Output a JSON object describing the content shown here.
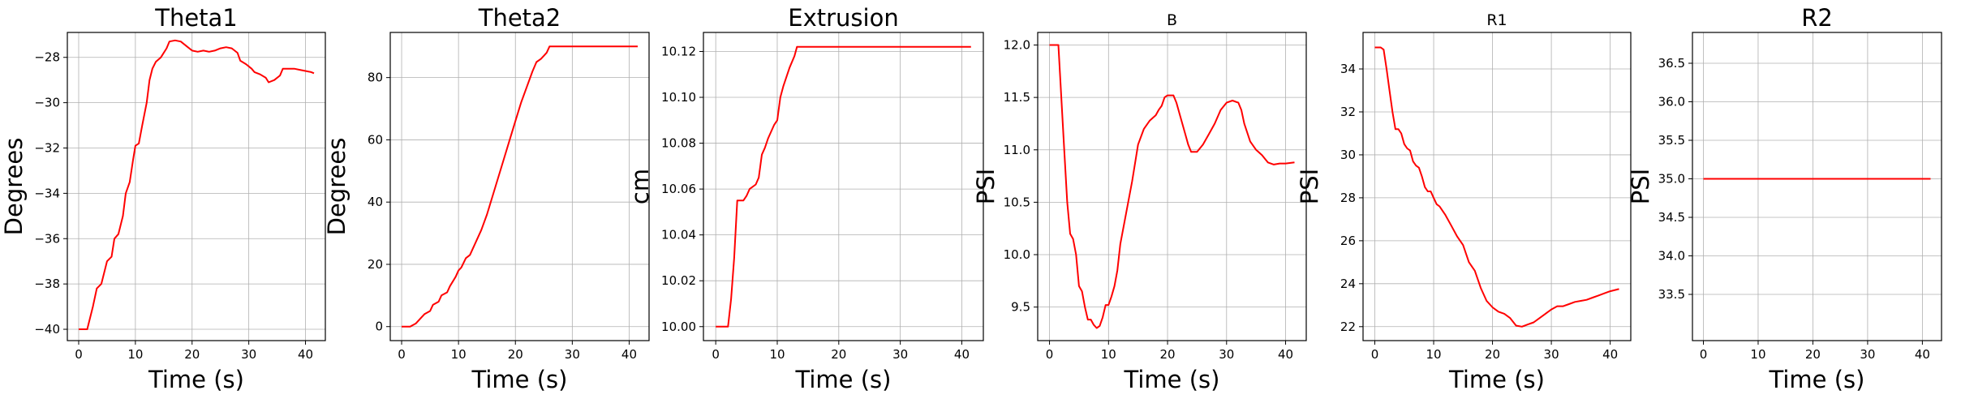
{
  "chart_data": [
    {
      "type": "line",
      "title": "Theta1",
      "title_size": "large",
      "xlabel": "Time (s)",
      "ylabel": "Degrees",
      "xlim": [
        -2,
        43.5
      ],
      "ylim": [
        -40.5,
        -26.9
      ],
      "xticks": [
        0,
        10,
        20,
        30,
        40
      ],
      "yticks": [
        -40,
        -38,
        -36,
        -34,
        -32,
        -30,
        -28
      ],
      "ytick_decimals": 0,
      "grid": true,
      "line_color": "#ff0000",
      "series": [
        {
          "points": [
            [
              0,
              -40
            ],
            [
              1.5,
              -40
            ],
            [
              2.5,
              -39
            ],
            [
              3.2,
              -38.2
            ],
            [
              4,
              -38
            ],
            [
              4.5,
              -37.5
            ],
            [
              5,
              -37
            ],
            [
              5.8,
              -36.8
            ],
            [
              6.3,
              -36
            ],
            [
              7,
              -35.8
            ],
            [
              7.8,
              -35
            ],
            [
              8.3,
              -34
            ],
            [
              9,
              -33.5
            ],
            [
              9.6,
              -32.5
            ],
            [
              10,
              -31.9
            ],
            [
              10.6,
              -31.8
            ],
            [
              11.2,
              -31
            ],
            [
              12,
              -30
            ],
            [
              12.5,
              -29
            ],
            [
              13,
              -28.5
            ],
            [
              13.6,
              -28.2
            ],
            [
              14.5,
              -28
            ],
            [
              15.5,
              -27.6
            ],
            [
              16,
              -27.3
            ],
            [
              17,
              -27.25
            ],
            [
              18,
              -27.3
            ],
            [
              19,
              -27.5
            ],
            [
              20,
              -27.7
            ],
            [
              21,
              -27.75
            ],
            [
              22,
              -27.7
            ],
            [
              23,
              -27.75
            ],
            [
              24,
              -27.7
            ],
            [
              25,
              -27.6
            ],
            [
              26,
              -27.55
            ],
            [
              27,
              -27.6
            ],
            [
              28,
              -27.8
            ],
            [
              28.5,
              -28.15
            ],
            [
              29.5,
              -28.3
            ],
            [
              30.5,
              -28.5
            ],
            [
              31,
              -28.65
            ],
            [
              32,
              -28.75
            ],
            [
              33,
              -28.9
            ],
            [
              33.5,
              -29.1
            ],
            [
              34.5,
              -29
            ],
            [
              35.5,
              -28.8
            ],
            [
              36,
              -28.5
            ],
            [
              37,
              -28.5
            ],
            [
              38,
              -28.5
            ],
            [
              39,
              -28.55
            ],
            [
              40,
              -28.6
            ],
            [
              41,
              -28.65
            ],
            [
              41.5,
              -28.7
            ]
          ]
        }
      ]
    },
    {
      "type": "line",
      "title": "Theta2",
      "title_size": "large",
      "xlabel": "Time (s)",
      "ylabel": "Degrees",
      "xlim": [
        -2,
        43.5
      ],
      "ylim": [
        -4.5,
        94.5
      ],
      "xticks": [
        0,
        10,
        20,
        30,
        40
      ],
      "yticks": [
        0,
        20,
        40,
        60,
        80
      ],
      "ytick_decimals": 0,
      "grid": true,
      "line_color": "#ff0000",
      "series": [
        {
          "points": [
            [
              0,
              0
            ],
            [
              1.5,
              0
            ],
            [
              2.5,
              1
            ],
            [
              3.5,
              3
            ],
            [
              4,
              4
            ],
            [
              5,
              5
            ],
            [
              5.5,
              7
            ],
            [
              6.5,
              8
            ],
            [
              7,
              10
            ],
            [
              8,
              11
            ],
            [
              8.5,
              13
            ],
            [
              9.5,
              16
            ],
            [
              10,
              18
            ],
            [
              10.5,
              19
            ],
            [
              11.3,
              22
            ],
            [
              12,
              23
            ],
            [
              13,
              27
            ],
            [
              14,
              31
            ],
            [
              15,
              36
            ],
            [
              16,
              42
            ],
            [
              17,
              48
            ],
            [
              18,
              54
            ],
            [
              19,
              60
            ],
            [
              20,
              66
            ],
            [
              21,
              72
            ],
            [
              22,
              77
            ],
            [
              23,
              82
            ],
            [
              23.7,
              85
            ],
            [
              24.5,
              86
            ],
            [
              25,
              87
            ],
            [
              25.5,
              88
            ],
            [
              26,
              90
            ],
            [
              27,
              90
            ],
            [
              30,
              90
            ],
            [
              35,
              90
            ],
            [
              40,
              90
            ],
            [
              41.5,
              90
            ]
          ]
        }
      ]
    },
    {
      "type": "line",
      "title": "Extrusion",
      "title_size": "large",
      "xlabel": "Time (s)",
      "ylabel": "cm",
      "xlim": [
        -2,
        43.5
      ],
      "ylim": [
        9.9939,
        10.1283
      ],
      "xticks": [
        0,
        10,
        20,
        30,
        40
      ],
      "yticks": [
        10.0,
        10.02,
        10.04,
        10.06,
        10.08,
        10.1,
        10.12
      ],
      "ytick_decimals": 2,
      "grid": true,
      "line_color": "#ff0000",
      "series": [
        {
          "points": [
            [
              0,
              10.0
            ],
            [
              2,
              10.0
            ],
            [
              2.5,
              10.012
            ],
            [
              3,
              10.03
            ],
            [
              3.5,
              10.055
            ],
            [
              4.5,
              10.055
            ],
            [
              5,
              10.057
            ],
            [
              5.5,
              10.06
            ],
            [
              6.5,
              10.062
            ],
            [
              7,
              10.065
            ],
            [
              7.5,
              10.075
            ],
            [
              8,
              10.078
            ],
            [
              8.5,
              10.082
            ],
            [
              9,
              10.085
            ],
            [
              9.5,
              10.088
            ],
            [
              10,
              10.09
            ],
            [
              10.5,
              10.1
            ],
            [
              11,
              10.105
            ],
            [
              12,
              10.113
            ],
            [
              12.8,
              10.118
            ],
            [
              13.2,
              10.122
            ],
            [
              14,
              10.122
            ],
            [
              20,
              10.122
            ],
            [
              30,
              10.122
            ],
            [
              41.5,
              10.122
            ]
          ]
        }
      ]
    },
    {
      "type": "line",
      "title": "B",
      "title_size": "small",
      "xlabel": "Time (s)",
      "ylabel": "PSI",
      "xlim": [
        -2,
        43.5
      ],
      "ylim": [
        9.18,
        12.12
      ],
      "xticks": [
        0,
        10,
        20,
        30,
        40
      ],
      "yticks": [
        9.5,
        10.0,
        10.5,
        11.0,
        11.5,
        12.0
      ],
      "ytick_decimals": 1,
      "grid": true,
      "line_color": "#ff0000",
      "series": [
        {
          "points": [
            [
              0,
              12.0
            ],
            [
              1.5,
              12.0
            ],
            [
              2,
              11.5
            ],
            [
              2.5,
              11.0
            ],
            [
              3,
              10.5
            ],
            [
              3.5,
              10.2
            ],
            [
              4,
              10.15
            ],
            [
              4.5,
              10.0
            ],
            [
              5,
              9.7
            ],
            [
              5.5,
              9.65
            ],
            [
              6,
              9.5
            ],
            [
              6.5,
              9.38
            ],
            [
              7,
              9.38
            ],
            [
              7.5,
              9.33
            ],
            [
              8,
              9.3
            ],
            [
              8.5,
              9.32
            ],
            [
              9,
              9.4
            ],
            [
              9.5,
              9.52
            ],
            [
              10,
              9.52
            ],
            [
              10.5,
              9.6
            ],
            [
              11,
              9.7
            ],
            [
              11.5,
              9.85
            ],
            [
              12,
              10.1
            ],
            [
              13,
              10.4
            ],
            [
              14,
              10.7
            ],
            [
              15,
              11.05
            ],
            [
              16,
              11.2
            ],
            [
              17,
              11.28
            ],
            [
              18,
              11.33
            ],
            [
              18.5,
              11.38
            ],
            [
              19,
              11.42
            ],
            [
              19.5,
              11.5
            ],
            [
              20,
              11.52
            ],
            [
              21,
              11.52
            ],
            [
              21.5,
              11.45
            ],
            [
              22,
              11.35
            ],
            [
              23,
              11.15
            ],
            [
              23.5,
              11.05
            ],
            [
              24,
              10.98
            ],
            [
              25,
              10.98
            ],
            [
              26,
              11.05
            ],
            [
              27,
              11.15
            ],
            [
              28,
              11.25
            ],
            [
              29,
              11.38
            ],
            [
              30,
              11.45
            ],
            [
              31,
              11.47
            ],
            [
              32,
              11.45
            ],
            [
              32.5,
              11.38
            ],
            [
              33,
              11.25
            ],
            [
              34,
              11.08
            ],
            [
              35,
              11.0
            ],
            [
              36,
              10.95
            ],
            [
              37,
              10.88
            ],
            [
              38,
              10.86
            ],
            [
              39,
              10.87
            ],
            [
              40,
              10.87
            ],
            [
              41.5,
              10.88
            ]
          ]
        }
      ]
    },
    {
      "type": "line",
      "title": "R1",
      "title_size": "small",
      "xlabel": "Time (s)",
      "ylabel": "PSI",
      "xlim": [
        -2,
        43.5
      ],
      "ylim": [
        21.35,
        35.7
      ],
      "xticks": [
        0,
        10,
        20,
        30,
        40
      ],
      "yticks": [
        22,
        24,
        26,
        28,
        30,
        32,
        34
      ],
      "ytick_decimals": 0,
      "grid": true,
      "line_color": "#ff0000",
      "series": [
        {
          "points": [
            [
              0,
              35.0
            ],
            [
              1,
              35.0
            ],
            [
              1.5,
              34.9
            ],
            [
              2,
              34
            ],
            [
              2.5,
              33
            ],
            [
              3,
              32
            ],
            [
              3.5,
              31.2
            ],
            [
              4,
              31.2
            ],
            [
              4.5,
              31
            ],
            [
              5,
              30.5
            ],
            [
              5.5,
              30.3
            ],
            [
              6,
              30.2
            ],
            [
              6.5,
              29.7
            ],
            [
              7,
              29.5
            ],
            [
              7.5,
              29.4
            ],
            [
              8,
              29
            ],
            [
              8.5,
              28.5
            ],
            [
              9,
              28.3
            ],
            [
              9.5,
              28.3
            ],
            [
              10,
              28
            ],
            [
              10.5,
              27.7
            ],
            [
              11,
              27.6
            ],
            [
              12,
              27.2
            ],
            [
              13,
              26.7
            ],
            [
              14,
              26.2
            ],
            [
              15,
              25.8
            ],
            [
              16,
              25
            ],
            [
              17,
              24.6
            ],
            [
              18,
              23.8
            ],
            [
              19,
              23.2
            ],
            [
              20,
              22.9
            ],
            [
              21,
              22.7
            ],
            [
              22,
              22.6
            ],
            [
              23,
              22.4
            ],
            [
              24,
              22.05
            ],
            [
              25,
              22.0
            ],
            [
              26,
              22.1
            ],
            [
              27,
              22.2
            ],
            [
              28,
              22.4
            ],
            [
              29,
              22.6
            ],
            [
              30,
              22.8
            ],
            [
              31,
              22.95
            ],
            [
              32,
              22.95
            ],
            [
              33,
              23.05
            ],
            [
              34,
              23.15
            ],
            [
              35,
              23.2
            ],
            [
              36,
              23.25
            ],
            [
              37,
              23.35
            ],
            [
              38,
              23.45
            ],
            [
              39,
              23.55
            ],
            [
              40,
              23.65
            ],
            [
              41.5,
              23.75
            ]
          ]
        }
      ]
    },
    {
      "type": "line",
      "title": "R2",
      "title_size": "large",
      "xlabel": "Time (s)",
      "ylabel": "PSI",
      "xlim": [
        -2,
        43.5
      ],
      "ylim": [
        32.9,
        36.9
      ],
      "xticks": [
        0,
        10,
        20,
        30,
        40
      ],
      "yticks": [
        33.5,
        34.0,
        34.5,
        35.0,
        35.5,
        36.0,
        36.5
      ],
      "ytick_decimals": 1,
      "grid": true,
      "line_color": "#ff0000",
      "series": [
        {
          "points": [
            [
              0,
              35.0
            ],
            [
              41.5,
              35.0
            ]
          ]
        }
      ]
    }
  ]
}
